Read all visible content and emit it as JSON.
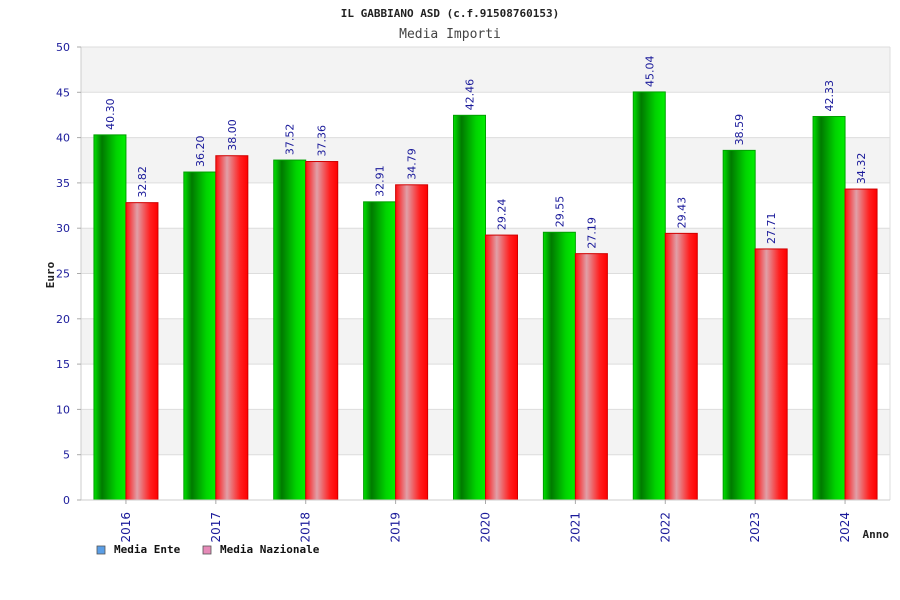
{
  "chart_data": {
    "type": "bar",
    "title": "IL GABBIANO ASD (c.f.91508760153)",
    "subtitle": "Media Importi",
    "xlabel": "Anno",
    "ylabel": "Euro",
    "ylim": [
      0,
      50
    ],
    "yticks": [
      0,
      5,
      10,
      15,
      20,
      25,
      30,
      35,
      40,
      45,
      50
    ],
    "categories": [
      "2016",
      "2017",
      "2018",
      "2019",
      "2020",
      "2021",
      "2022",
      "2023",
      "2024"
    ],
    "series": [
      {
        "name": "Media Ente",
        "color": "#00c000",
        "legend_color": "#5a9ee6",
        "values": [
          40.3,
          36.2,
          37.52,
          32.91,
          42.46,
          29.55,
          45.04,
          38.59,
          42.33
        ],
        "labels": [
          "40.30",
          "36.20",
          "37.52",
          "32.91",
          "42.46",
          "29.55",
          "45.04",
          "38.59",
          "42.33"
        ]
      },
      {
        "name": "Media Nazionale",
        "color": "#ff0000",
        "legend_color": "#e68ab8",
        "values": [
          32.82,
          38.0,
          37.36,
          34.79,
          29.24,
          27.19,
          29.43,
          27.71,
          34.32
        ],
        "labels": [
          "32.82",
          "38.00",
          "37.36",
          "34.79",
          "29.24",
          "27.19",
          "29.43",
          "27.71",
          "34.32"
        ]
      }
    ],
    "grid": true,
    "legend_position": "bottom-left"
  }
}
